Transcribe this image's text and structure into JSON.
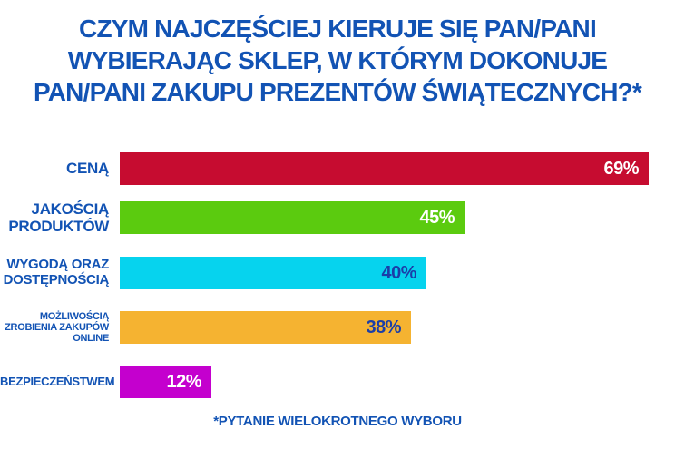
{
  "page": {
    "background_color": "#FFFFFF",
    "accent_blue": "#1253B4"
  },
  "title": {
    "text": "CZYM NAJCZĘŚCIEJ KIERUJE SIĘ PAN/PANI WYBIERAJĄC SKLEP, W KTÓRYM DOKONUJE PAN/PANI ZAKUPU PREZENTÓW ŚWIĄTECZNYCH?*",
    "lines": [
      "CZYM NAJCZĘŚCIEJ KIERUJE SIĘ PAN/PANI",
      "WYBIERAJĄC SKLEP, W KTÓRYM DOKONUJE",
      "PAN/PANI ZAKUPU PREZENTÓW ŚWIĄTECZNYCH?*"
    ],
    "color": "#1253B4"
  },
  "chart_data": {
    "type": "bar",
    "orientation": "horizontal",
    "title": "CZYM NAJCZĘŚCIEJ KIERUJE SIĘ PAN/PANI WYBIERAJĄC SKLEP, W KTÓRYM DOKONUJE PAN/PANI ZAKUPU PREZENTÓW ŚWIĄTECZNYCH?*",
    "footnote": "*PYTANIE WIELOKROTNEGO WYBORU",
    "unit": "%",
    "xlim": [
      0,
      72
    ],
    "grid": false,
    "legend": false,
    "categories": [
      "CENĄ",
      "JAKOŚCIĄ PRODUKTÓW",
      "WYGODĄ ORAZ DOSTĘPNOŚCIĄ",
      "MOŻLIWOŚCIĄ ZROBIENIA ZAKUPÓW ONLINE",
      "BEZPIECZEŃSTWEM"
    ],
    "values": [
      69,
      45,
      40,
      38,
      12
    ],
    "bars": [
      {
        "label_lines": [
          "CENĄ"
        ],
        "value": 69,
        "value_label": "69%",
        "color": "#C60C30",
        "value_color": "#FFFFFF"
      },
      {
        "label_lines": [
          "JAKOŚCIĄ",
          "PRODUKTÓW"
        ],
        "value": 45,
        "value_label": "45%",
        "color": "#5BCB0F",
        "value_color": "#FFFFFF"
      },
      {
        "label_lines": [
          "WYGODĄ ORAZ",
          "DOSTĘPNOŚCIĄ"
        ],
        "value": 40,
        "value_label": "40%",
        "color": "#06D3EE",
        "value_color": "#1B3EA8"
      },
      {
        "label_lines": [
          "MOŻLIWOŚCIĄ",
          "ZROBIENIA ZAKUPÓW",
          "ONLINE"
        ],
        "value": 38,
        "value_label": "38%",
        "color": "#F5B331",
        "value_color": "#1B3EA8"
      },
      {
        "label_lines": [
          "BEZPIECZEŃSTWEM"
        ],
        "value": 12,
        "value_label": "12%",
        "color": "#C400CE",
        "value_color": "#FFFFFF"
      }
    ]
  },
  "footer": {
    "note": "*PYTANIE WIELOKROTNEGO WYBORU",
    "color": "#1253B4"
  }
}
